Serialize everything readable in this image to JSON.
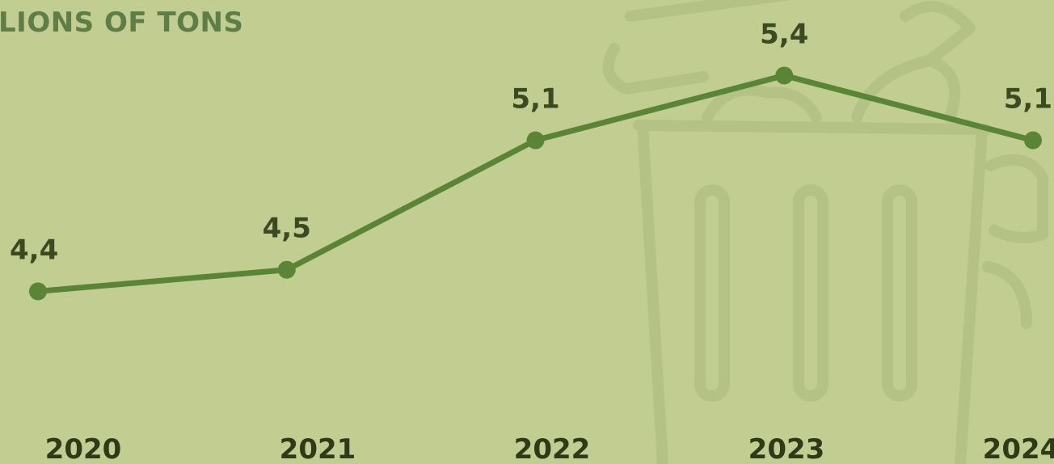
{
  "chart_data": {
    "type": "line",
    "title": "LIONS OF TONS",
    "categories": [
      "2020",
      "2021",
      "2022",
      "2023",
      "2024"
    ],
    "series": [
      {
        "values": [
          4.4,
          4.5,
          5.1,
          5.4,
          5.1
        ]
      }
    ],
    "data_labels": [
      "4,4",
      "4,5",
      "5,1",
      "5,4",
      "5,1"
    ],
    "ylim": [
      3.6,
      5.75
    ],
    "grid": false,
    "line_color": "#5a8536",
    "background_color": "#c1cd91",
    "decoration": "trash-can-icon"
  }
}
